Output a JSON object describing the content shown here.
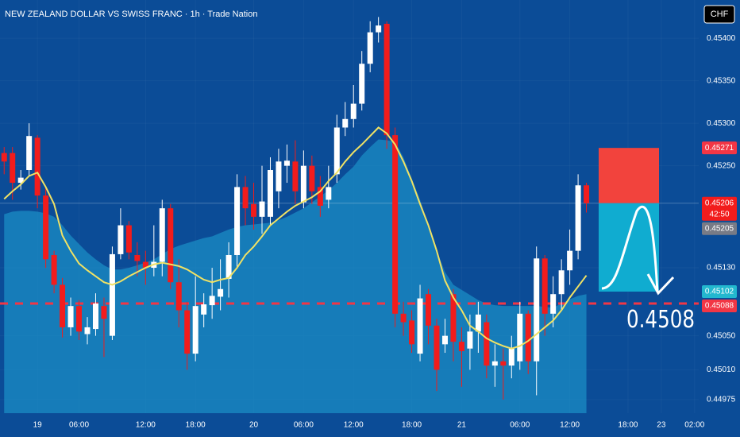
{
  "chart_data": {
    "type": "candlestick",
    "title": "NEW ZEALAND DOLLAR VS SWISS FRANC · 1h · Trade Nation",
    "currency": "CHF",
    "up_color": "#ffffff",
    "down_color": "#f21c1c",
    "grid": true,
    "open": [
      0.45265,
      0.45265,
      0.4523,
      0.45245,
      0.45283,
      0.45215,
      0.45145,
      0.4511,
      0.4506,
      0.45085,
      0.45052,
      0.45058,
      0.45085,
      0.4505,
      0.45146,
      0.4518,
      0.45145,
      0.45137,
      0.4513,
      0.45137,
      0.452,
      0.45113,
      0.4508,
      0.45029,
      0.45075,
      0.45086,
      0.45096,
      0.45117,
      0.45145,
      0.45225,
      0.45205,
      0.4519,
      0.4519,
      0.4522,
      0.4525,
      0.45255,
      0.45207,
      0.4525,
      0.45225,
      0.4521,
      0.4524,
      0.45295,
      0.45305,
      0.45323,
      0.4537,
      0.45407,
      0.45417,
      0.45286,
      0.45076,
      0.45068,
      0.45029,
      0.45099,
      0.45062,
      0.4504,
      0.45099,
      0.45043,
      0.45035,
      0.45055,
      0.45066,
      0.45015,
      0.4502,
      0.45015,
      0.4502,
      0.45076,
      0.4502,
      0.45141,
      0.45076,
      0.45099,
      0.45127,
      0.4515,
      0.45227
    ],
    "close": [
      0.45255,
      0.4523,
      0.45236,
      0.45285,
      0.45215,
      0.4514,
      0.4511,
      0.4506,
      0.45085,
      0.45055,
      0.4506,
      0.45088,
      0.4507,
      0.45146,
      0.4518,
      0.45148,
      0.45138,
      0.4513,
      0.45137,
      0.452,
      0.45113,
      0.4508,
      0.45029,
      0.45085,
      0.45087,
      0.45097,
      0.45105,
      0.45145,
      0.45225,
      0.452,
      0.4519,
      0.45208,
      0.45245,
      0.45255,
      0.45256,
      0.4522,
      0.4525,
      0.4522,
      0.45203,
      0.45225,
      0.45295,
      0.45305,
      0.45323,
      0.4537,
      0.45407,
      0.45415,
      0.45286,
      0.45076,
      0.45066,
      0.4504,
      0.45094,
      0.45062,
      0.4501,
      0.4505,
      0.45043,
      0.45032,
      0.45055,
      0.45075,
      0.45015,
      0.4502,
      0.45015,
      0.45035,
      0.45076,
      0.4502,
      0.45141,
      0.45076,
      0.45099,
      0.45127,
      0.4515,
      0.45227,
      0.45206
    ],
    "high": [
      0.45272,
      0.45272,
      0.45245,
      0.453,
      0.45286,
      0.45225,
      0.4515,
      0.45118,
      0.45095,
      0.45092,
      0.45072,
      0.451,
      0.45095,
      0.45155,
      0.452,
      0.45185,
      0.4516,
      0.4515,
      0.4518,
      0.4521,
      0.45205,
      0.4514,
      0.4509,
      0.4512,
      0.451,
      0.4513,
      0.4514,
      0.4516,
      0.4524,
      0.45238,
      0.4523,
      0.4525,
      0.4526,
      0.4527,
      0.45275,
      0.4528,
      0.45268,
      0.45262,
      0.45238,
      0.4525,
      0.4531,
      0.45325,
      0.45345,
      0.45385,
      0.4542,
      0.45425,
      0.4542,
      0.45295,
      0.4509,
      0.4508,
      0.4511,
      0.45105,
      0.4507,
      0.4507,
      0.45105,
      0.4506,
      0.45075,
      0.4509,
      0.45075,
      0.4504,
      0.45035,
      0.4505,
      0.4509,
      0.4508,
      0.45155,
      0.45145,
      0.4512,
      0.4514,
      0.45175,
      0.4524,
      0.4523
    ],
    "low": [
      0.4524,
      0.4521,
      0.45222,
      0.45238,
      0.452,
      0.4513,
      0.451,
      0.45048,
      0.4505,
      0.45045,
      0.4504,
      0.4505,
      0.45025,
      0.45045,
      0.4514,
      0.4514,
      0.4512,
      0.4511,
      0.4512,
      0.4512,
      0.45105,
      0.4506,
      0.4501,
      0.4502,
      0.4506,
      0.4507,
      0.4508,
      0.45095,
      0.4513,
      0.4518,
      0.45175,
      0.4517,
      0.4518,
      0.452,
      0.4523,
      0.45205,
      0.452,
      0.45205,
      0.4519,
      0.452,
      0.4523,
      0.45285,
      0.45295,
      0.45315,
      0.4536,
      0.45395,
      0.4527,
      0.4506,
      0.4505,
      0.4503,
      0.4502,
      0.4504,
      0.44985,
      0.4503,
      0.4502,
      0.4499,
      0.4501,
      0.4503,
      0.45,
      0.4499,
      0.44975,
      0.45,
      0.4501,
      0.45005,
      0.4498,
      0.4505,
      0.4506,
      0.4508,
      0.4511,
      0.4514,
      0.45195
    ],
    "moving_average": {
      "color": "#f0e264",
      "values": [
        0.45211,
        0.4522,
        0.45228,
        0.45238,
        0.45242,
        0.45225,
        0.45205,
        0.45168,
        0.4515,
        0.45135,
        0.45127,
        0.4512,
        0.45113,
        0.4511,
        0.45114,
        0.4512,
        0.45125,
        0.4513,
        0.45134,
        0.45136,
        0.45134,
        0.45132,
        0.45128,
        0.45122,
        0.45116,
        0.45113,
        0.45116,
        0.45118,
        0.4513,
        0.45145,
        0.45155,
        0.45167,
        0.4518,
        0.45188,
        0.45196,
        0.45203,
        0.45208,
        0.45213,
        0.4522,
        0.45232,
        0.45242,
        0.45255,
        0.45266,
        0.45275,
        0.45285,
        0.45295,
        0.45288,
        0.45275,
        0.45255,
        0.45232,
        0.45205,
        0.4518,
        0.4515,
        0.45115,
        0.45095,
        0.4508,
        0.45062,
        0.45055,
        0.45047,
        0.45042,
        0.45038,
        0.45035,
        0.45038,
        0.45044,
        0.45052,
        0.4506,
        0.45068,
        0.4508,
        0.45095,
        0.45108,
        0.45121
      ]
    },
    "area": {
      "color": "#1b8cc4",
      "values": [
        0.45193,
        0.45196,
        0.45197,
        0.45197,
        0.45196,
        0.45194,
        0.4519,
        0.4518,
        0.45168,
        0.45158,
        0.45148,
        0.4514,
        0.45133,
        0.45128,
        0.45128,
        0.4513,
        0.45133,
        0.45136,
        0.4514,
        0.45146,
        0.45152,
        0.45156,
        0.45159,
        0.45162,
        0.45165,
        0.45167,
        0.45171,
        0.45175,
        0.45178,
        0.4518,
        0.45181,
        0.45182,
        0.45183,
        0.45186,
        0.4519,
        0.45195,
        0.452,
        0.45207,
        0.45214,
        0.45221,
        0.4523,
        0.4524,
        0.45249,
        0.45262,
        0.45272,
        0.45281,
        0.4528,
        0.45278,
        0.4526,
        0.45235,
        0.4521,
        0.4518,
        0.4515,
        0.45125,
        0.4511,
        0.45104,
        0.45098,
        0.45092,
        0.45088,
        0.45086,
        0.45085,
        0.45085,
        0.45085,
        0.45085,
        0.45085,
        0.45084,
        0.45083,
        0.45088,
        0.45093,
        0.45097,
        0.45099
      ]
    },
    "xlim": [
      -0.5,
      83.5
    ],
    "xticks": [
      {
        "value": 4,
        "label": "19"
      },
      {
        "value": 9,
        "label": "06:00"
      },
      {
        "value": 17,
        "label": "12:00"
      },
      {
        "value": 23,
        "label": "18:00"
      },
      {
        "value": 30,
        "label": "20"
      },
      {
        "value": 36,
        "label": "06:00"
      },
      {
        "value": 42,
        "label": "12:00"
      },
      {
        "value": 49,
        "label": "18:00"
      },
      {
        "value": 55,
        "label": "21"
      },
      {
        "value": 62,
        "label": "06:00"
      },
      {
        "value": 68,
        "label": "12:00"
      },
      {
        "value": 75,
        "label": "18:00"
      },
      {
        "value": 79,
        "label": "23"
      },
      {
        "value": 83,
        "label": "02:00"
      }
    ],
    "ylim": [
      0.44959,
      0.45445
    ],
    "yticks": [
      {
        "value": 0.454,
        "label": "0.45400"
      },
      {
        "value": 0.4535,
        "label": "0.45350"
      },
      {
        "value": 0.453,
        "label": "0.45300"
      },
      {
        "value": 0.4525,
        "label": "0.45250"
      },
      {
        "value": 0.4513,
        "label": "0.45130"
      },
      {
        "value": 0.4505,
        "label": "0.45050"
      },
      {
        "value": 0.4501,
        "label": "0.45010"
      },
      0.44975
    ],
    "price_labels": [
      {
        "value": 0.45271,
        "color": "#f23645"
      },
      {
        "value": 0.45206,
        "color": "#f21c1c",
        "countdown": "42:50"
      },
      {
        "value": 0.45205,
        "color": "#787b86"
      },
      {
        "value": 0.45102,
        "color": "#22b8cf"
      },
      {
        "value": 0.45088,
        "color": "#f23645"
      }
    ],
    "position": {
      "stop": 0.45271,
      "entry": 0.45206,
      "target": 0.45102,
      "stop_color": "#f2433d",
      "target_color": "#10acd0"
    },
    "annotation": "0.4508"
  }
}
